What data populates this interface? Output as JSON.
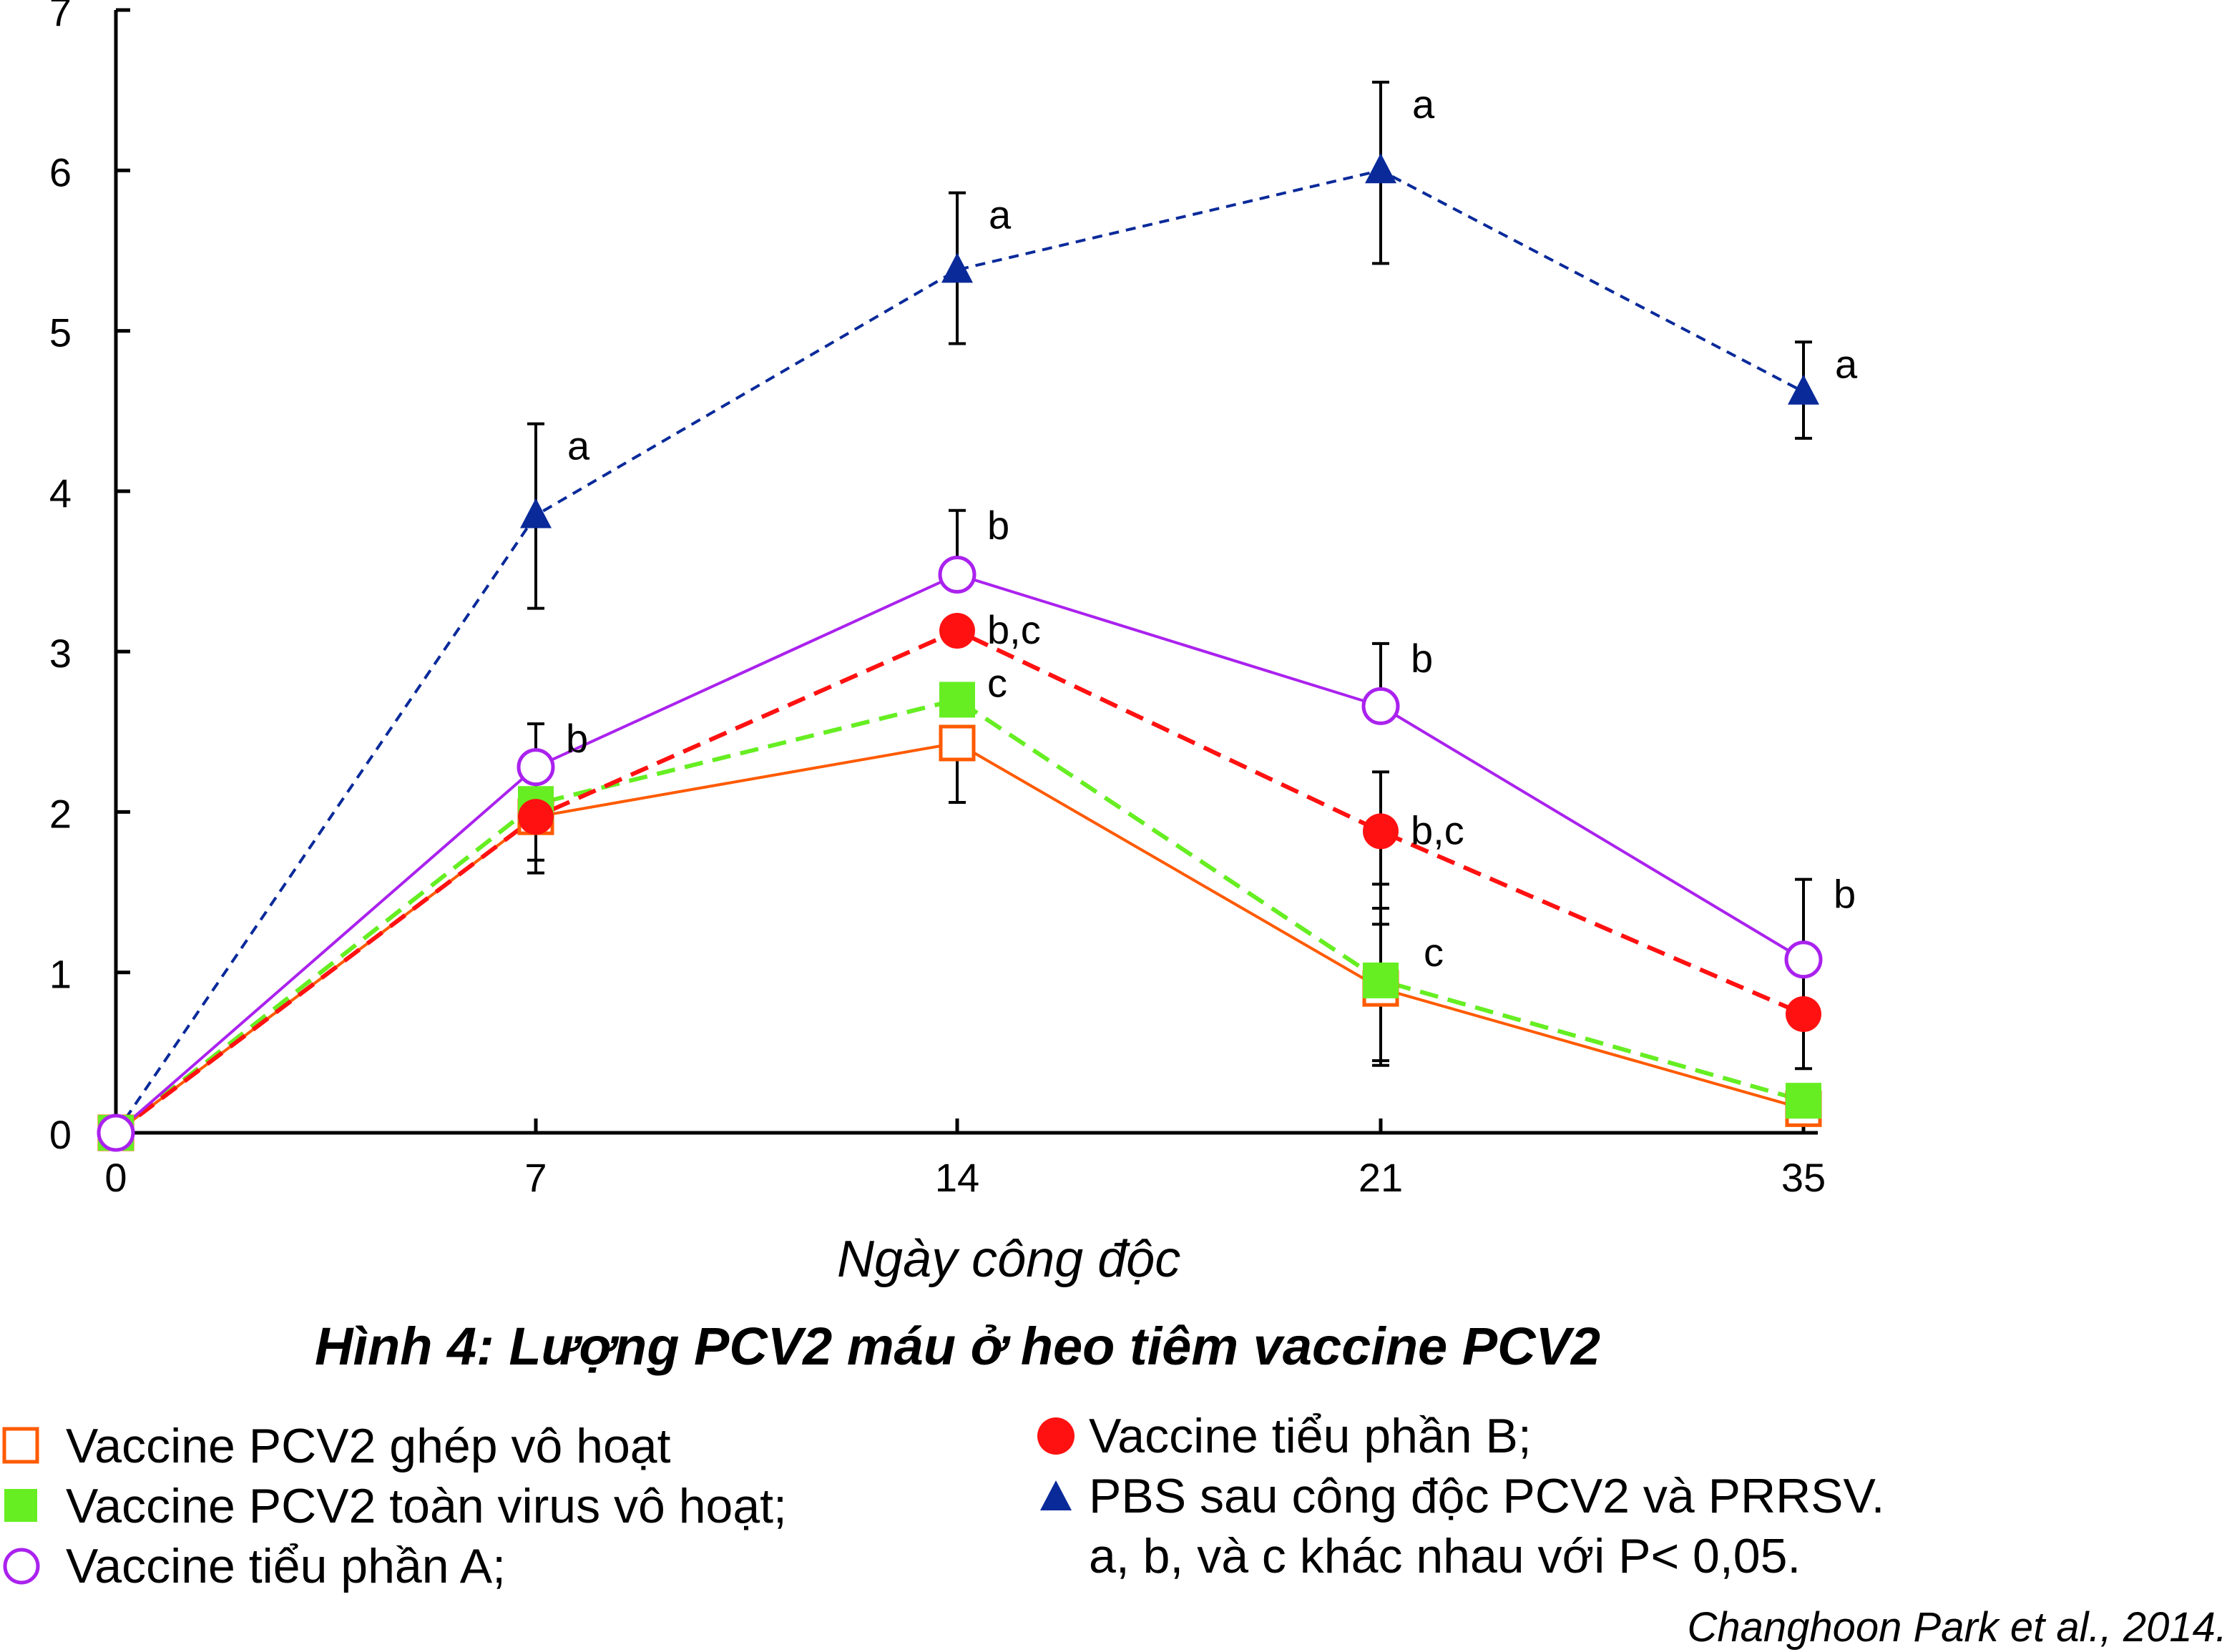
{
  "chart_data": {
    "type": "line",
    "title": "Hình 4: Lượng PCV2 máu ở heo tiêm vaccine PCV2",
    "xlabel": "Ngày công độc",
    "ylabel": "",
    "ylim": [
      0,
      7
    ],
    "y_ticks": [
      "0",
      "1",
      "2",
      "3",
      "4",
      "5",
      "6",
      "7"
    ],
    "categories": [
      "0",
      "7",
      "14",
      "21",
      "35"
    ],
    "series": [
      {
        "name": "Vaccine PCV2 ghép vô hoạt",
        "color": "#ff5a00",
        "marker": "open-square",
        "dashed": false,
        "values": [
          0,
          1.97,
          2.43,
          0.9,
          0.15
        ],
        "err_low": [
          0,
          1.62,
          2.06,
          0.42,
          0.15
        ],
        "err_high": [
          0,
          2.3,
          2.43,
          1.4,
          0.15
        ],
        "letters": [
          "",
          "",
          "",
          "",
          ""
        ]
      },
      {
        "name": "Vaccine PCV2 toàn virus vô hoạt;",
        "color": "#66ee22",
        "marker": "filled-square",
        "dashed": true,
        "values": [
          0,
          2.05,
          2.7,
          0.95,
          0.2
        ],
        "err_low": [
          0,
          1.7,
          2.7,
          0.45,
          0.2
        ],
        "err_high": [
          0,
          2.05,
          2.7,
          1.55,
          0.2
        ],
        "letters": [
          "",
          "",
          "c",
          "c",
          ""
        ]
      },
      {
        "name": "Vaccine tiểu phần A;",
        "color": "#aa22ee",
        "marker": "open-circle",
        "dashed": false,
        "values": [
          0,
          2.28,
          3.48,
          2.66,
          1.08
        ],
        "err_low": [
          0,
          2.28,
          3.48,
          2.66,
          0.4
        ],
        "err_high": [
          0,
          2.55,
          3.88,
          3.05,
          1.58
        ],
        "letters": [
          "",
          "b",
          "b",
          "b",
          "b"
        ]
      },
      {
        "name": "Vaccine tiểu phần B;",
        "color": "#ff1111",
        "marker": "filled-circle",
        "dashed": true,
        "values": [
          0,
          1.97,
          3.13,
          1.88,
          0.74
        ],
        "err_low": [
          0,
          1.97,
          3.13,
          1.3,
          0.74
        ],
        "err_high": [
          0,
          1.97,
          3.13,
          2.25,
          0.74
        ],
        "letters": [
          "",
          "",
          "b,c",
          "b,c",
          ""
        ]
      },
      {
        "name": "PBS sau công độc PCV2 và PRRSV.",
        "color": "#0a2a9a",
        "marker": "filled-triangle",
        "dashed": true,
        "values": [
          0,
          3.85,
          5.38,
          6.0,
          4.62
        ],
        "err_low": [
          0,
          3.27,
          4.92,
          5.42,
          4.33
        ],
        "err_high": [
          0,
          4.42,
          5.86,
          6.55,
          4.93
        ],
        "letters": [
          "",
          "a",
          "a",
          "a",
          "a"
        ]
      }
    ]
  },
  "legend": {
    "left": [
      {
        "label": "Vaccine PCV2 ghép vô hoạt",
        "marker": "open-square",
        "color": "#ff5a00"
      },
      {
        "label": "Vaccine PCV2 toàn virus vô hoạt;",
        "marker": "filled-square",
        "color": "#66ee22"
      },
      {
        "label": "Vaccine tiểu phần A;",
        "marker": "open-circle",
        "color": "#aa22ee"
      }
    ],
    "right": [
      {
        "label": "Vaccine tiểu phần B;",
        "marker": "filled-circle",
        "color": "#ff1111"
      },
      {
        "label": "PBS sau công độc PCV2 và PRRSV.",
        "marker": "filled-triangle",
        "color": "#0a2a9a"
      }
    ],
    "note": "a, b, và c khác nhau với P< 0,05."
  },
  "credit": "Changhoon Park et al., 2014."
}
